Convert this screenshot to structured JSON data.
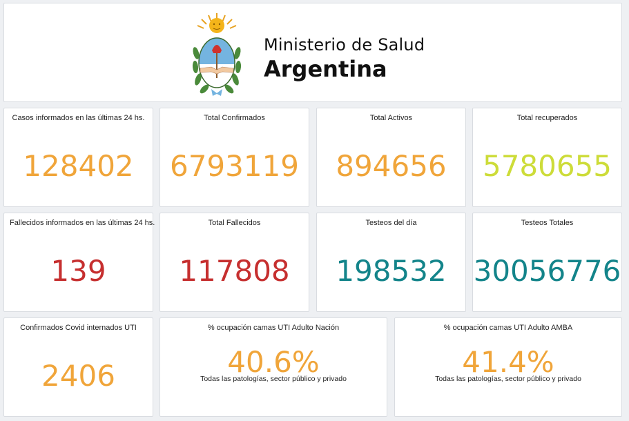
{
  "header": {
    "brand_line1": "Ministerio de Salud",
    "brand_line2": "Argentina",
    "logo_icon": "argentina-coat-of-arms-icon"
  },
  "colors": {
    "orange": "#f0a53a",
    "lime": "#cddc39",
    "red": "#c62f2f",
    "teal": "#13848a"
  },
  "kpis": {
    "casos_ultimas": {
      "title": "Casos informados en las últimas 24 hs.",
      "value": "128402",
      "color": "#f0a53a"
    },
    "total_confirmados": {
      "title": "Total Confirmados",
      "value": "6793119",
      "color": "#f0a53a"
    },
    "total_activos": {
      "title": "Total Activos",
      "value": "894656",
      "color": "#f0a53a"
    },
    "total_recuperados": {
      "title": "Total recuperados",
      "value": "5780655",
      "color": "#cddc39"
    },
    "fallecidos_ultimas": {
      "title": "Fallecidos informados en las últimas 24 hs.",
      "value": "139",
      "color": "#c62f2f"
    },
    "total_fallecidos": {
      "title": "Total Fallecidos",
      "value": "117808",
      "color": "#c62f2f"
    },
    "testeos_dia": {
      "title": "Testeos del día",
      "value": "198532",
      "color": "#13848a"
    },
    "testeos_totales": {
      "title": "Testeos Totales",
      "value": "30056776",
      "color": "#13848a"
    },
    "internados_uti": {
      "title": "Confirmados Covid internados UTI",
      "value": "2406",
      "color": "#f0a53a"
    },
    "ocupacion_nacion": {
      "title": "% ocupación camas UTI Adulto Nación",
      "value": "40.6%",
      "subtitle": "Todas las patologías, sector público y privado",
      "color": "#f0a53a"
    },
    "ocupacion_amba": {
      "title": "% ocupación camas UTI Adulto AMBA",
      "value": "41.4%",
      "subtitle": "Todas las patologías, sector público y privado",
      "color": "#f0a53a"
    }
  }
}
